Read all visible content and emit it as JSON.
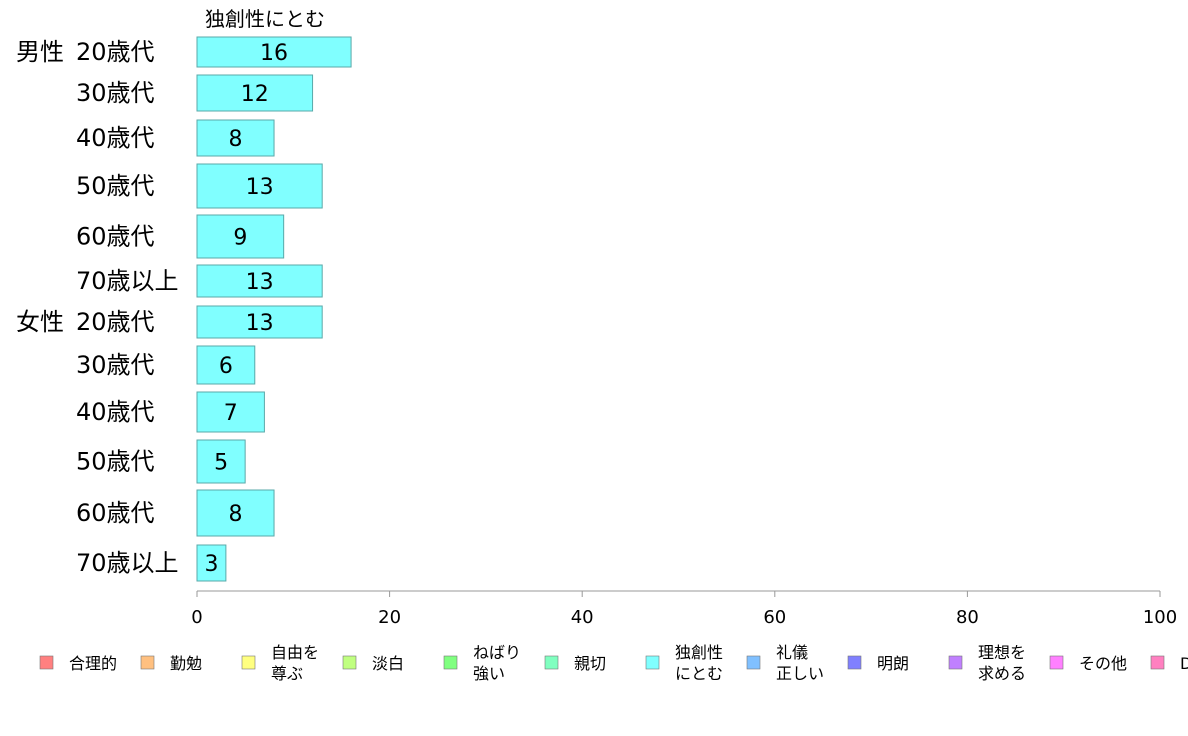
{
  "chart_data": {
    "type": "bar",
    "orientation": "horizontal",
    "series_title": "独創性にとむ",
    "xlim": [
      0,
      100
    ],
    "xticks": [
      0,
      20,
      40,
      60,
      80,
      100
    ],
    "rows": [
      {
        "group": "男性",
        "label": "20歳代",
        "value": 16
      },
      {
        "group": "",
        "label": "30歳代",
        "value": 12
      },
      {
        "group": "",
        "label": "40歳代",
        "value": 8
      },
      {
        "group": "",
        "label": "50歳代",
        "value": 13
      },
      {
        "group": "",
        "label": "60歳代",
        "value": 9
      },
      {
        "group": "",
        "label": "70歳以上",
        "value": 13
      },
      {
        "group": "女性",
        "label": "20歳代",
        "value": 13
      },
      {
        "group": "",
        "label": "30歳代",
        "value": 6
      },
      {
        "group": "",
        "label": "40歳代",
        "value": 7
      },
      {
        "group": "",
        "label": "50歳代",
        "value": 5
      },
      {
        "group": "",
        "label": "60歳代",
        "value": 8
      },
      {
        "group": "",
        "label": "70歳以上",
        "value": 3
      }
    ],
    "bar_color": "#80ffff",
    "bar_border": "#5aa8a8",
    "legend": [
      {
        "label": [
          "合理的"
        ],
        "color": "#ff8080"
      },
      {
        "label": [
          "勤勉"
        ],
        "color": "#ffc080"
      },
      {
        "label": [
          "自由を",
          "尊ぶ"
        ],
        "color": "#ffff80"
      },
      {
        "label": [
          "淡白"
        ],
        "color": "#c0ff80"
      },
      {
        "label": [
          "ねばり",
          "強い"
        ],
        "color": "#80ff80"
      },
      {
        "label": [
          "親切"
        ],
        "color": "#80ffc0"
      },
      {
        "label": [
          "独創性",
          "にとむ"
        ],
        "color": "#80ffff"
      },
      {
        "label": [
          "礼儀",
          "正しい"
        ],
        "color": "#80c0ff"
      },
      {
        "label": [
          "明朗"
        ],
        "color": "#8080ff"
      },
      {
        "label": [
          "理想を",
          "求める"
        ],
        "color": "#c080ff"
      },
      {
        "label": [
          "その他"
        ],
        "color": "#ff80ff"
      },
      {
        "label": [
          "D"
        ],
        "color": "#ff80c0"
      }
    ]
  }
}
